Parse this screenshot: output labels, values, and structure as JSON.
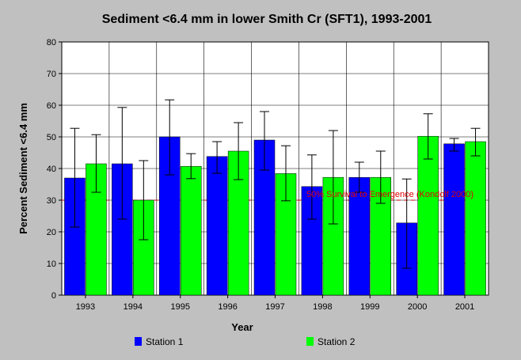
{
  "chart_data": {
    "type": "bar",
    "title": "Sediment <6.4 mm in lower Smith Cr (SFT1), 1993-2001",
    "xlabel": "Year",
    "ylabel": "Percent Sediment <6.4 mm",
    "ylim": [
      0,
      80
    ],
    "yticks": [
      0,
      10,
      20,
      30,
      40,
      50,
      60,
      70,
      80
    ],
    "grid": true,
    "legend_position": "bottom",
    "categories": [
      "1993",
      "1994",
      "1995",
      "1996",
      "1997",
      "1998",
      "1999",
      "2000",
      "2001"
    ],
    "series": [
      {
        "name": "Station 1",
        "color": "#0000ff",
        "values": [
          37,
          41.5,
          50,
          43.8,
          49,
          34.3,
          37.2,
          22.8,
          47.8
        ],
        "error_low": [
          21.5,
          24,
          38,
          38.5,
          39.5,
          24,
          32.5,
          8.5,
          45.5
        ],
        "error_high": [
          52.7,
          59.3,
          61.7,
          48.5,
          58,
          44.3,
          42,
          36.7,
          49.5
        ]
      },
      {
        "name": "Station 2",
        "color": "#00ff00",
        "values": [
          41.5,
          30,
          40.7,
          45.5,
          38.4,
          37.2,
          37.2,
          50.2,
          48.5
        ],
        "error_low": [
          32.5,
          17.5,
          36.8,
          36.5,
          29.8,
          22.5,
          29,
          43,
          44
        ],
        "error_high": [
          50.7,
          42.5,
          44.7,
          54.5,
          47.2,
          52,
          45.5,
          57.3,
          52.7
        ]
      }
    ],
    "reference_line": {
      "value": 30,
      "label": "50% Survival to Emergence (Kondolf 2000)",
      "color": "#cc0000"
    }
  }
}
